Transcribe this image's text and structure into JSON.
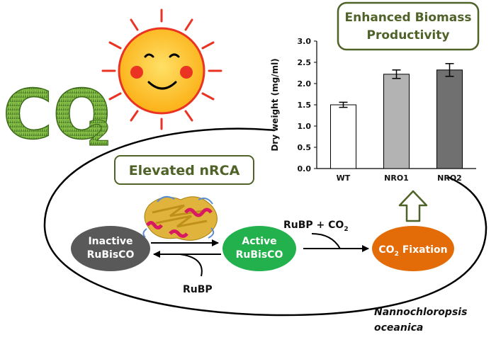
{
  "co2_logo": {
    "text": "CO",
    "subscript": "2"
  },
  "biomass_box": {
    "line1": "Enhanced Biomass",
    "line2": "Productivity"
  },
  "nrca_box": {
    "label": "Elevated nRCA"
  },
  "nodes": {
    "inactive": {
      "line1": "Inactive",
      "line2": "RuBisCO"
    },
    "active": {
      "line1": "Active",
      "line2": "RuBisCO"
    },
    "fixation": {
      "text": "CO",
      "subscript": "2",
      "suffix": " Fixation"
    }
  },
  "labels": {
    "rubp_co2": {
      "text": "RuBP + CO",
      "subscript": "2"
    },
    "rubp": "RuBP",
    "organism_line1": "Nannochloropsis",
    "organism_line2": "oceanica"
  },
  "colors": {
    "inactive": "#595959",
    "active": "#22b14c",
    "fixation": "#e36c09",
    "box_border": "#4f6228",
    "arrow_up": "#4f6228"
  },
  "chart_data": {
    "type": "bar",
    "categories": [
      "WT",
      "NRO1",
      "NRO2"
    ],
    "values": [
      1.5,
      2.22,
      2.32
    ],
    "errors": [
      0.06,
      0.1,
      0.15
    ],
    "bar_colors": [
      "#ffffff",
      "#b3b3b3",
      "#707070"
    ],
    "ylabel": "Dry weight (mg/ml)",
    "ylim": [
      0,
      3.0
    ],
    "yticks": [
      "0.0",
      "0.5",
      "1.0",
      "1.5",
      "2.0",
      "2.5",
      "3.0"
    ],
    "ytick_values": [
      0,
      0.5,
      1.0,
      1.5,
      2.0,
      2.5,
      3.0
    ]
  }
}
